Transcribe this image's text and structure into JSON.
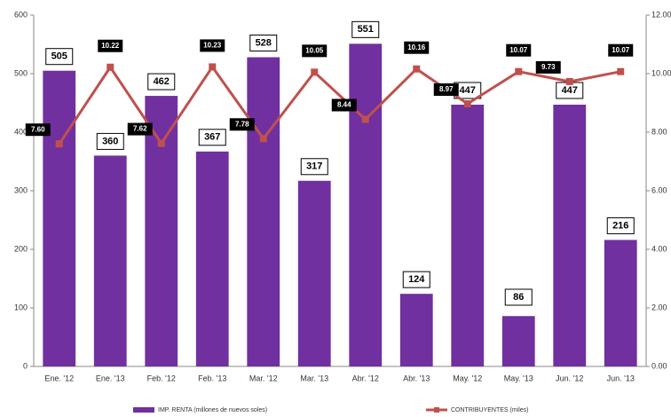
{
  "chart_data": {
    "type": "bar_line",
    "categories": [
      "Ene. '12",
      "Ene. '13",
      "Feb. '12",
      "Feb. '13",
      "Mar. '12",
      "Mar. '13",
      "Abr. '12",
      "Abr. '13",
      "May. '12",
      "May. '13",
      "Jun. '12",
      "Jun. '13"
    ],
    "series": [
      {
        "name": "IMP. RENTA (millones de nuevos soles)",
        "type": "bar",
        "color": "#7030a0",
        "values": [
          505,
          360,
          462,
          367,
          528,
          317,
          551,
          124,
          447,
          86,
          447,
          216
        ]
      },
      {
        "name": "CONTRIBUYENTES (miles)",
        "type": "line",
        "axis": "y2",
        "color": "#c0504d",
        "values": [
          7.6,
          10.22,
          7.62,
          10.23,
          7.78,
          10.05,
          8.44,
          10.16,
          8.97,
          10.07,
          9.73,
          10.07
        ],
        "value_labels": [
          "7.60",
          "10.22",
          "7.62",
          "10.23",
          "7.78",
          "10.05",
          "8.44",
          "10.16",
          "8.97",
          "10.07",
          "9.73",
          "10.07"
        ]
      }
    ],
    "ylim": [
      0,
      600
    ],
    "yticks": [
      0,
      100,
      200,
      300,
      400,
      500,
      600
    ],
    "y2lim": [
      0,
      12
    ],
    "y2ticks": [
      {
        "value": 0,
        "label": "0.00"
      },
      {
        "value": 2,
        "label": "2.00"
      },
      {
        "value": 4,
        "label": "4.00"
      },
      {
        "value": 6,
        "label": "6.00"
      },
      {
        "value": 8,
        "label": "8.00"
      },
      {
        "value": 10,
        "label": "10.00"
      },
      {
        "value": 12,
        "label": "12.00"
      }
    ],
    "legend": "bottom"
  }
}
